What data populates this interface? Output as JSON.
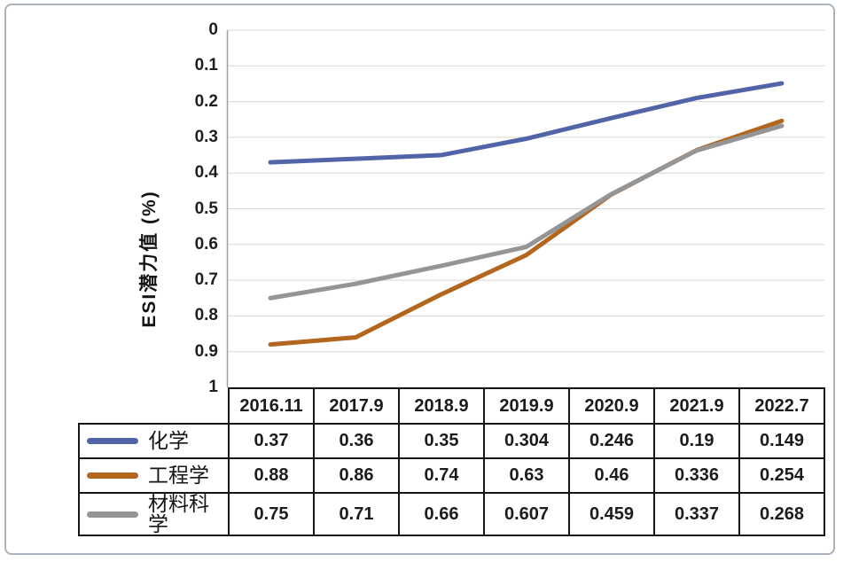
{
  "figure": {
    "background_color": "#ffffff",
    "border_color": "#a9b2bd"
  },
  "chart_data": {
    "type": "line",
    "title": "",
    "xlabel": "",
    "ylabel": "ESI潜力值 (%)",
    "x_categories": [
      "2016.11",
      "2017.9",
      "2018.9",
      "2019.9",
      "2020.9",
      "2021.9",
      "2022.7"
    ],
    "y_axis": {
      "min": 0,
      "max": 1,
      "step": 0.1,
      "inverted": true,
      "tick_labels": [
        "0",
        "0.1",
        "0.2",
        "0.3",
        "0.4",
        "0.5",
        "0.6",
        "0.7",
        "0.8",
        "0.9",
        "1"
      ]
    },
    "grid": true,
    "gridline_color": "#d6d6d6",
    "axis_line_color": "#9aa1a8",
    "legend_position": "table-left",
    "series": [
      {
        "name": "化学",
        "color": "#5164a8",
        "values": [
          0.37,
          0.36,
          0.35,
          0.304,
          0.246,
          0.19,
          0.149
        ]
      },
      {
        "name": "工程学",
        "color": "#b2661e",
        "values": [
          0.88,
          0.86,
          0.74,
          0.63,
          0.46,
          0.336,
          0.254
        ]
      },
      {
        "name": "材料科学",
        "color": "#959595",
        "values": [
          0.75,
          0.71,
          0.66,
          0.607,
          0.459,
          0.337,
          0.268
        ]
      }
    ],
    "table_border_color": "#161616"
  }
}
